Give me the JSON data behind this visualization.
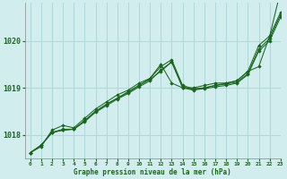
{
  "title": "Graphe pression niveau de la mer (hPa)",
  "background_color": "#d1eded",
  "grid_color": "#b0d8d8",
  "line_color": "#1a6620",
  "marker_color": "#1a6620",
  "xlim": [
    -0.5,
    23
  ],
  "ylim": [
    1017.5,
    1020.8
  ],
  "yticks": [
    1018,
    1019,
    1020
  ],
  "xticks": [
    0,
    1,
    2,
    3,
    4,
    5,
    6,
    7,
    8,
    9,
    10,
    11,
    12,
    13,
    14,
    15,
    16,
    17,
    18,
    19,
    20,
    21,
    22,
    23
  ],
  "series": [
    [
      1017.62,
      1017.75,
      1018.1,
      1018.2,
      1018.15,
      1018.35,
      1018.55,
      1018.7,
      1018.85,
      1018.95,
      1019.1,
      1019.2,
      1019.5,
      1019.1,
      1019.0,
      1019.0,
      1019.05,
      1019.1,
      1019.1,
      1019.15,
      1019.35,
      1019.45,
      1020.1,
      1021.05
    ],
    [
      1017.62,
      1017.78,
      1018.05,
      1018.1,
      1018.12,
      1018.3,
      1018.5,
      1018.65,
      1018.78,
      1018.92,
      1019.05,
      1019.18,
      1019.35,
      1019.55,
      1019.0,
      1018.95,
      1019.0,
      1019.05,
      1019.1,
      1019.15,
      1019.35,
      1019.9,
      1020.1,
      1020.6
    ],
    [
      1017.62,
      1017.78,
      1018.05,
      1018.1,
      1018.12,
      1018.3,
      1018.5,
      1018.65,
      1018.78,
      1018.9,
      1019.05,
      1019.2,
      1019.45,
      1019.6,
      1019.05,
      1018.98,
      1019.0,
      1019.05,
      1019.08,
      1019.12,
      1019.3,
      1019.82,
      1020.05,
      1020.55
    ],
    [
      1017.62,
      1017.78,
      1018.05,
      1018.12,
      1018.12,
      1018.28,
      1018.48,
      1018.62,
      1018.76,
      1018.88,
      1019.02,
      1019.15,
      1019.38,
      1019.55,
      1019.02,
      1018.96,
      1018.98,
      1019.02,
      1019.05,
      1019.1,
      1019.28,
      1019.78,
      1020.0,
      1020.5
    ]
  ]
}
